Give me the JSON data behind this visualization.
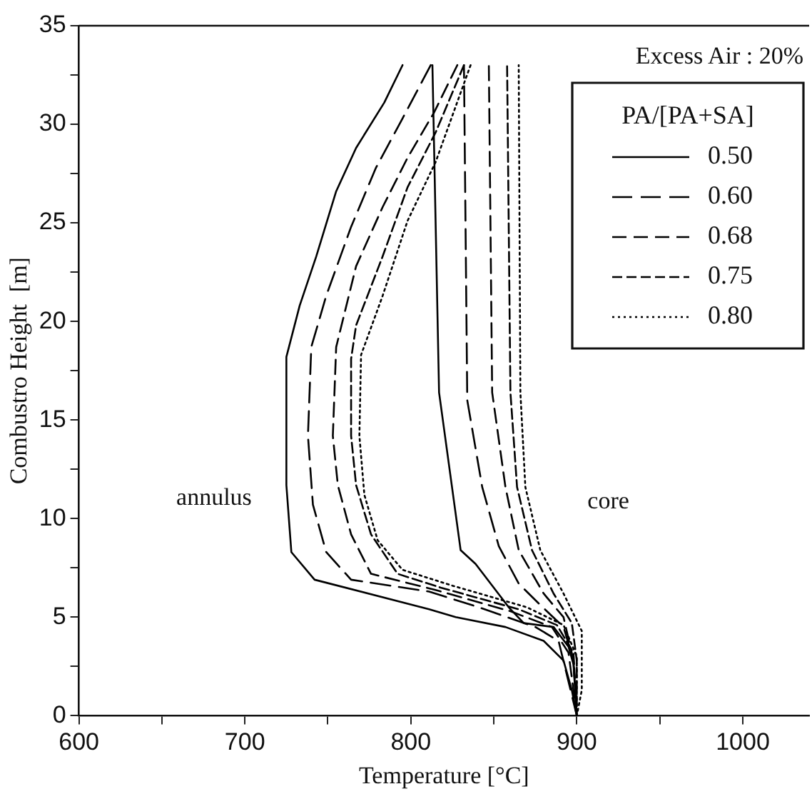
{
  "chart_data": {
    "type": "line",
    "xlabel": "Temperature [°C]",
    "ylabel": "Combustro Height  [m]",
    "legend_title": "PA/[PA+SA]",
    "legend": "top right",
    "grid": false,
    "marker": "none",
    "xlim": [
      600,
      1040
    ],
    "xticks": [
      600,
      {
        "value": 650,
        "label": null
      },
      700,
      {
        "value": 750,
        "label": null
      },
      800,
      {
        "value": 850,
        "label": null
      },
      900,
      {
        "value": 950,
        "label": null
      },
      1000
    ],
    "ylim": [
      0,
      35
    ],
    "yticks": [
      0,
      {
        "value": 2.5,
        "label": null
      },
      5,
      {
        "value": 7.5,
        "label": null
      },
      10,
      {
        "value": 12.5,
        "label": null
      },
      15,
      {
        "value": 17.5,
        "label": null
      },
      20,
      {
        "value": 22.5,
        "label": null
      },
      25,
      {
        "value": 27.5,
        "label": null
      },
      30,
      {
        "value": 32.5,
        "label": null
      },
      35
    ],
    "annotations": [
      "Excess Air : 20%",
      "annulus",
      "core"
    ],
    "series": [
      {
        "name": "0.50",
        "color": "#000000",
        "line_style": "solid",
        "x": [
          795,
          784,
          767,
          755,
          743,
          733,
          725,
          725,
          728,
          742,
          811,
          827,
          857,
          880,
          892,
          897,
          900,
          898,
          895,
          886,
          868,
          859,
          839,
          830,
          817,
          813
        ],
        "values": [
          33,
          31.1,
          28.8,
          26.6,
          23.3,
          20.8,
          18.2,
          11.7,
          8.3,
          6.9,
          5.4,
          5,
          4.5,
          3.8,
          2.8,
          1.3,
          0,
          2.6,
          3.5,
          4.5,
          4.7,
          5.5,
          7.7,
          8.4,
          16.4,
          33
        ]
      },
      {
        "name": "0.60",
        "color": "#000000",
        "line_style": "dashed",
        "x": [
          812,
          795,
          779,
          764,
          749,
          740,
          738,
          741,
          749,
          764,
          811,
          841,
          875,
          889,
          900,
          898,
          892,
          877,
          865,
          853,
          843,
          834,
          832
        ],
        "values": [
          33,
          30.3,
          27.8,
          24.8,
          21.3,
          18.7,
          14.2,
          10.7,
          8.3,
          6.9,
          6.3,
          5.5,
          4.5,
          3.8,
          0,
          2.8,
          4.5,
          5.7,
          6.7,
          8.6,
          11.6,
          16,
          33
        ]
      },
      {
        "name": "0.68",
        "color": "#000000",
        "line_style": "dashed",
        "x": [
          828,
          814,
          798,
          783,
          767,
          755,
          753,
          756,
          764,
          776,
          814,
          860,
          885,
          895,
          900,
          898,
          892,
          880,
          865,
          857,
          849,
          847
        ],
        "values": [
          33,
          30.6,
          28.3,
          25.8,
          22.8,
          18.7,
          14.2,
          11.7,
          9.2,
          7.2,
          6.4,
          5.3,
          4.5,
          3.2,
          0,
          2.8,
          5,
          6.2,
          8.4,
          11.6,
          16.4,
          33
        ]
      },
      {
        "name": "0.75",
        "color": "#000000",
        "line_style": "dashed",
        "x": [
          832,
          815,
          798,
          783,
          767,
          764,
          764,
          767,
          776,
          792,
          818,
          865,
          888,
          898,
          900,
          900,
          897,
          886,
          873,
          864,
          860,
          858
        ],
        "values": [
          33,
          29.6,
          26.8,
          23.3,
          19.8,
          18.1,
          14.2,
          11.7,
          9.2,
          7.2,
          6.5,
          5.4,
          4.6,
          3.2,
          0,
          2.8,
          4.7,
          6.2,
          8.4,
          11.6,
          16.4,
          33
        ]
      },
      {
        "name": "0.80",
        "color": "#000000",
        "line_style": "dotted",
        "x": [
          836,
          815,
          798,
          783,
          770,
          769,
          772,
          780,
          795,
          825,
          870,
          892,
          900,
          900,
          903,
          903,
          892,
          878,
          869,
          866,
          865
        ],
        "values": [
          33,
          28.1,
          25.1,
          21.3,
          18.3,
          14.2,
          11.2,
          8.9,
          7.4,
          6.6,
          5.5,
          4.6,
          3,
          0,
          1.3,
          4.3,
          6.2,
          8.4,
          11.6,
          16.4,
          33
        ]
      }
    ]
  }
}
